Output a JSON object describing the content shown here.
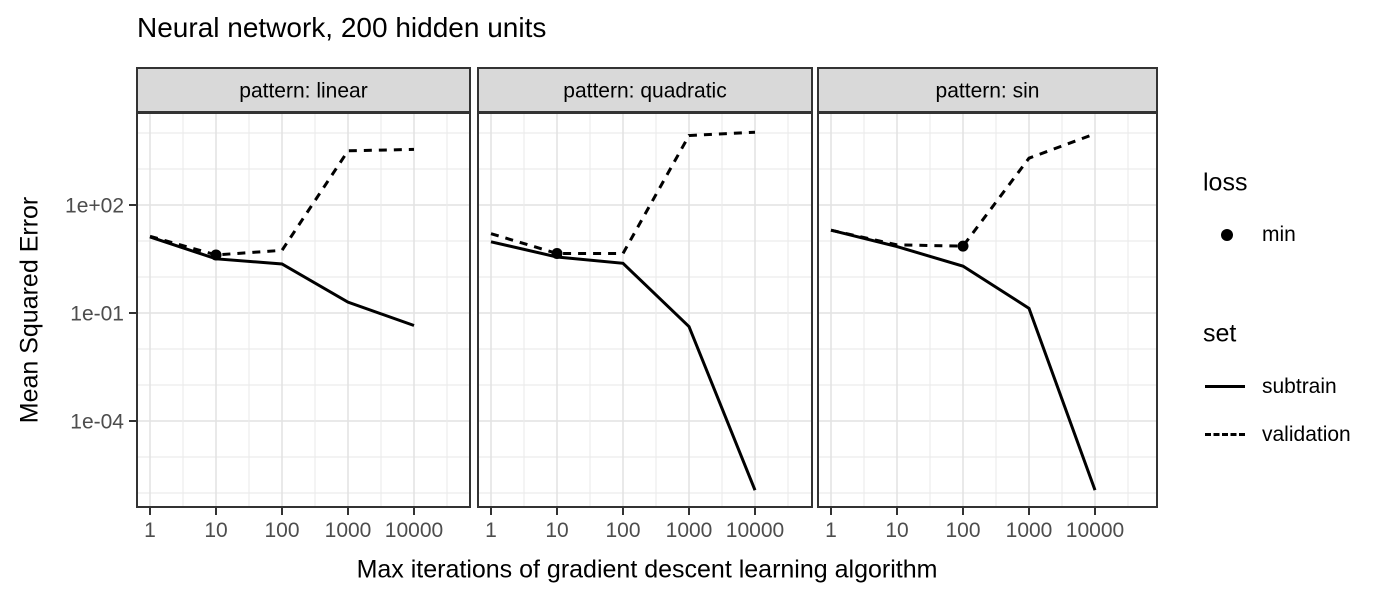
{
  "legend": {
    "groups": [
      {
        "title": "loss",
        "items": [
          {
            "label": "min",
            "glyph": "point"
          }
        ]
      },
      {
        "title": "set",
        "items": [
          {
            "label": "subtrain",
            "glyph": "solid-line"
          },
          {
            "label": "validation",
            "glyph": "dashed-line"
          }
        ]
      }
    ]
  },
  "colors": {
    "line": "#000000",
    "strip_fill": "#d9d9d9",
    "panel_border": "#333333",
    "grid_major": "#e2e2e2",
    "grid_minor": "#ececec",
    "tick_text": "#4d4d4d",
    "background": "#ffffff"
  },
  "chart_data": {
    "type": "line",
    "title": "Neural network, 200 hidden units",
    "xlabel": "Max iterations of gradient descent learning algorithm",
    "ylabel": "Mean Squared Error",
    "x_scale": "log10",
    "y_scale": "log10",
    "x": [
      1,
      10,
      100,
      1000,
      10000
    ],
    "x_tick_labels": [
      "1",
      "10",
      "100",
      "1000",
      "10000"
    ],
    "y_tick_values": [
      100,
      0.1,
      0.0001
    ],
    "y_tick_labels": [
      "1e+02",
      "1e-01",
      "1e-04"
    ],
    "ylim": [
      4e-07,
      36000
    ],
    "grid": true,
    "legend_position": "right",
    "facets": [
      {
        "label": "pattern: linear",
        "series": [
          {
            "name": "subtrain",
            "line": "solid",
            "values": [
              13,
              3.2,
              2.3,
              0.2,
              0.045
            ]
          },
          {
            "name": "validation",
            "line": "dashed",
            "values": [
              13.5,
              4.1,
              5.5,
              3200,
              3500
            ]
          }
        ],
        "min_point": {
          "series": "validation",
          "x": 10,
          "y": 4.1
        }
      },
      {
        "label": "pattern: quadratic",
        "series": [
          {
            "name": "subtrain",
            "line": "solid",
            "values": [
              9.5,
              3.6,
              2.4,
              0.042,
              1.2e-06
            ]
          },
          {
            "name": "validation",
            "line": "dashed",
            "values": [
              16,
              4.5,
              4.5,
              8500,
              10500
            ]
          }
        ],
        "min_point": {
          "series": "validation",
          "x": 10,
          "y": 4.5
        }
      },
      {
        "label": "pattern: sin",
        "series": [
          {
            "name": "subtrain",
            "line": "solid",
            "values": [
              20,
              7.0,
              2.0,
              0.135,
              1.2e-06
            ]
          },
          {
            "name": "validation",
            "line": "dashed",
            "values": [
              20,
              7.8,
              7.2,
              2000,
              9500
            ]
          }
        ],
        "min_point": {
          "series": "validation",
          "x": 100,
          "y": 7.2
        }
      }
    ]
  }
}
